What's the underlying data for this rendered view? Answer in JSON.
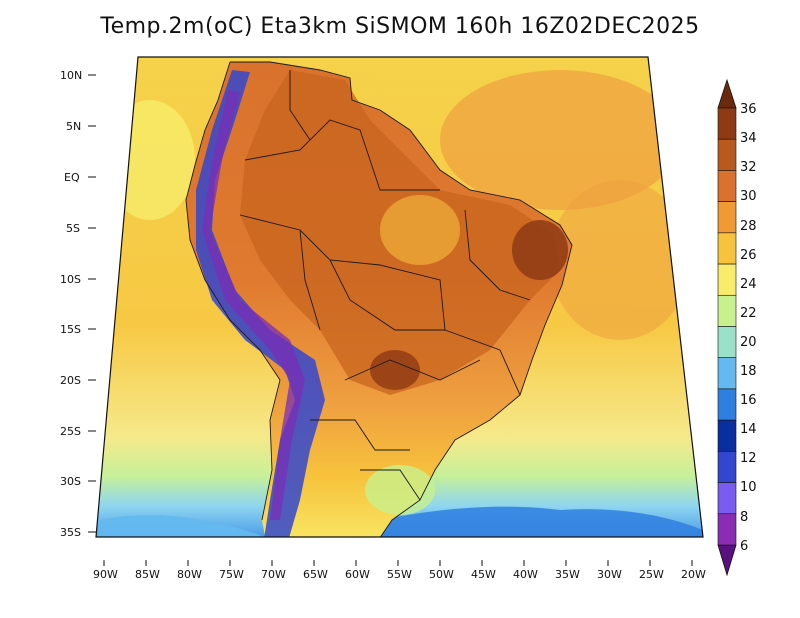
{
  "title": "Temp.2m(oC) Eta3km SiSMOM 160h 16Z02DEC2025",
  "lat_labels": [
    "10N",
    "5N",
    "EQ",
    "5S",
    "10S",
    "15S",
    "20S",
    "25S",
    "30S",
    "35S"
  ],
  "lon_labels": [
    "90W",
    "85W",
    "80W",
    "75W",
    "70W",
    "65W",
    "60W",
    "55W",
    "50W",
    "45W",
    "40W",
    "35W",
    "30W",
    "25W",
    "20W"
  ],
  "colorbar": {
    "labels": [
      "36",
      "34",
      "32",
      "30",
      "28",
      "26",
      "24",
      "22",
      "20",
      "18",
      "16",
      "14",
      "12",
      "10",
      "8",
      "6"
    ],
    "colors": [
      "#6b2a0e",
      "#8e3a14",
      "#b85a1e",
      "#d9722c",
      "#ef9a33",
      "#f7c33c",
      "#f8ec6a",
      "#c8f08c",
      "#9be0c8",
      "#63b9f0",
      "#2f7fe0",
      "#0a2ea0",
      "#3346d0",
      "#7a5cf0",
      "#8a2db5",
      "#5a1080"
    ]
  }
}
